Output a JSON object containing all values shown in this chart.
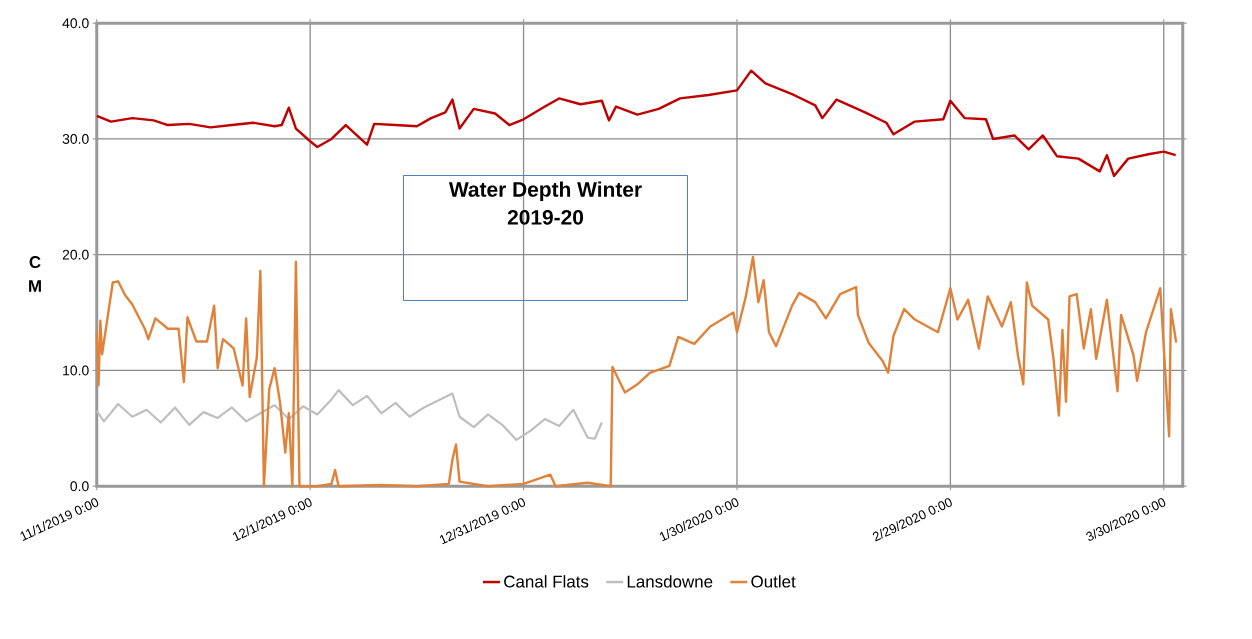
{
  "chart_data": {
    "type": "line",
    "title": "Water Depth Winter 2019-20",
    "ylabel": "C M",
    "xlim": [
      "2019-11-01T00:00",
      "2020-04-01T16:00"
    ],
    "xticks": [
      {
        "value": "2019-11-01T00:00",
        "label": "11/1/2019 0:00"
      },
      {
        "value": "2019-12-01T00:00",
        "label": "12/1/2019 0:00"
      },
      {
        "value": "2019-12-31T00:00",
        "label": "12/31/2019 0:00"
      },
      {
        "value": "2020-01-30T00:00",
        "label": "1/30/2020 0:00"
      },
      {
        "value": "2020-02-29T00:00",
        "label": "2/29/2020 0:00"
      },
      {
        "value": "2020-03-30T00:00",
        "label": "3/30/2020 0:00"
      }
    ],
    "ylim": [
      0,
      40
    ],
    "yticks": [
      {
        "value": 0,
        "label": "0.0"
      },
      {
        "value": 10,
        "label": "10.0"
      },
      {
        "value": 20,
        "label": "20.0"
      },
      {
        "value": 30,
        "label": "30.0"
      },
      {
        "value": 40,
        "label": "40.0"
      }
    ],
    "grid": true,
    "legend": "bottom",
    "series": [
      {
        "name": "Canal Flats",
        "color": "#c00000",
        "x": [
          "2019-11-01T00:00",
          "2019-11-03T00:00",
          "2019-11-06T00:00",
          "2019-11-09T00:00",
          "2019-11-11T00:00",
          "2019-11-14T00:00",
          "2019-11-17T00:00",
          "2019-11-20T00:00",
          "2019-11-23T00:00",
          "2019-11-26T00:00",
          "2019-11-27T00:00",
          "2019-11-28T00:00",
          "2019-11-29T00:00",
          "2019-12-01T00:00",
          "2019-12-02T00:00",
          "2019-12-04T00:00",
          "2019-12-06T00:00",
          "2019-12-09T00:00",
          "2019-12-10T00:00",
          "2019-12-13T00:00",
          "2019-12-16T00:00",
          "2019-12-18T00:00",
          "2019-12-20T00:00",
          "2019-12-21T00:00",
          "2019-12-22T00:00",
          "2019-12-24T00:00",
          "2019-12-27T00:00",
          "2019-12-29T00:00",
          "2019-12-31T00:00",
          "2020-01-03T00:00",
          "2020-01-05T00:00",
          "2020-01-08T00:00",
          "2020-01-11T00:00",
          "2020-01-12T00:00",
          "2020-01-13T00:00",
          "2020-01-16T00:00",
          "2020-01-19T00:00",
          "2020-01-22T00:00",
          "2020-01-26T00:00",
          "2020-01-30T00:00",
          "2020-02-01T00:00",
          "2020-02-03T00:00",
          "2020-02-07T00:00",
          "2020-02-10T00:00",
          "2020-02-11T00:00",
          "2020-02-13T00:00",
          "2020-02-17T00:00",
          "2020-02-20T00:00",
          "2020-02-21T00:00",
          "2020-02-24T00:00",
          "2020-02-28T00:00",
          "2020-02-29T00:00",
          "2020-03-02T00:00",
          "2020-03-05T00:00",
          "2020-03-06T00:00",
          "2020-03-09T00:00",
          "2020-03-11T00:00",
          "2020-03-13T00:00",
          "2020-03-15T00:00",
          "2020-03-18T00:00",
          "2020-03-21T00:00",
          "2020-03-22T00:00",
          "2020-03-23T00:00",
          "2020-03-25T00:00",
          "2020-03-28T00:00",
          "2020-03-30T00:00",
          "2020-03-31T16:00"
        ],
        "values": [
          32.0,
          31.5,
          31.8,
          31.6,
          31.2,
          31.3,
          31.0,
          31.2,
          31.4,
          31.1,
          31.2,
          32.7,
          30.9,
          29.8,
          29.3,
          30.0,
          31.2,
          29.5,
          31.3,
          31.2,
          31.1,
          31.8,
          32.3,
          33.4,
          30.9,
          32.6,
          32.2,
          31.2,
          31.7,
          32.8,
          33.5,
          33.0,
          33.3,
          31.6,
          32.8,
          32.1,
          32.6,
          33.5,
          33.8,
          34.2,
          35.9,
          34.8,
          33.8,
          32.9,
          31.8,
          33.4,
          32.3,
          31.4,
          30.4,
          31.5,
          31.7,
          33.3,
          31.8,
          31.7,
          30.0,
          30.3,
          29.1,
          30.3,
          28.5,
          28.3,
          27.2,
          28.6,
          26.8,
          28.3,
          28.7,
          28.9,
          28.6
        ]
      },
      {
        "name": "Lansdowne",
        "color": "#bfbfbf",
        "x": [
          "2019-11-01T00:00",
          "2019-11-02T00:00",
          "2019-11-04T00:00",
          "2019-11-06T00:00",
          "2019-11-08T00:00",
          "2019-11-10T00:00",
          "2019-11-12T00:00",
          "2019-11-14T00:00",
          "2019-11-16T00:00",
          "2019-11-18T00:00",
          "2019-11-20T00:00",
          "2019-11-22T00:00",
          "2019-11-24T00:00",
          "2019-11-26T00:00",
          "2019-11-28T00:00",
          "2019-11-30T00:00",
          "2019-12-02T00:00",
          "2019-12-04T00:00",
          "2019-12-05T00:00",
          "2019-12-07T00:00",
          "2019-12-09T00:00",
          "2019-12-11T00:00",
          "2019-12-13T00:00",
          "2019-12-15T00:00",
          "2019-12-17T00:00",
          "2019-12-19T00:00",
          "2019-12-21T00:00",
          "2019-12-22T00:00",
          "2019-12-24T00:00",
          "2019-12-26T00:00",
          "2019-12-28T00:00",
          "2019-12-30T00:00",
          "2020-01-01T00:00",
          "2020-01-03T00:00",
          "2020-01-05T00:00",
          "2020-01-07T00:00",
          "2020-01-09T00:00",
          "2020-01-10T00:00",
          "2020-01-11T00:00"
        ],
        "values": [
          6.5,
          5.6,
          7.1,
          6.0,
          6.6,
          5.5,
          6.8,
          5.3,
          6.4,
          5.9,
          6.8,
          5.6,
          6.3,
          7.0,
          5.8,
          6.9,
          6.2,
          7.5,
          8.3,
          7.0,
          7.8,
          6.3,
          7.2,
          6.0,
          6.8,
          7.4,
          8.0,
          6.0,
          5.1,
          6.2,
          5.3,
          4.0,
          4.8,
          5.8,
          5.2,
          6.6,
          4.2,
          4.1,
          5.5
        ]
      },
      {
        "name": "Outlet",
        "color": "#e0823a",
        "x": [
          "2019-11-01T00:00",
          "2019-11-01T06:00",
          "2019-11-01T12:00",
          "2019-11-01T18:00",
          "2019-11-03T06:00",
          "2019-11-04T00:00",
          "2019-11-05T00:00",
          "2019-11-06T00:00",
          "2019-11-07T18:00",
          "2019-11-08T06:00",
          "2019-11-09T06:00",
          "2019-11-11T00:00",
          "2019-11-12T12:00",
          "2019-11-13T06:00",
          "2019-11-13T18:00",
          "2019-11-15T00:00",
          "2019-11-16T12:00",
          "2019-11-17T12:00",
          "2019-11-18T00:00",
          "2019-11-18T18:00",
          "2019-11-20T06:00",
          "2019-11-21T12:00",
          "2019-11-22T00:00",
          "2019-11-22T12:00",
          "2019-11-23T12:00",
          "2019-11-24T00:00",
          "2019-11-24T12:00",
          "2019-11-25T06:00",
          "2019-11-26T00:00",
          "2019-11-26T18:00",
          "2019-11-27T12:00",
          "2019-11-28T00:00",
          "2019-11-28T12:00",
          "2019-11-29T00:00",
          "2019-11-29T12:00",
          "2019-12-02T00:00",
          "2019-12-04T00:00",
          "2019-12-04T12:00",
          "2019-12-05T00:00",
          "2019-12-11T00:00",
          "2019-12-16T00:00",
          "2019-12-20T12:00",
          "2019-12-21T00:00",
          "2019-12-21T12:00",
          "2019-12-22T00:00",
          "2019-12-26T00:00",
          "2019-12-31T00:00",
          "2020-01-03T18:00",
          "2020-01-04T12:00",
          "2020-01-09T00:00",
          "2020-01-12T06:00",
          "2020-01-12T12:00",
          "2020-01-14T06:00",
          "2020-01-16T00:00",
          "2020-01-17T18:00",
          "2020-01-20T12:00",
          "2020-01-21T18:00",
          "2020-01-24T00:00",
          "2020-01-26T06:00",
          "2020-01-29T12:00",
          "2020-01-30T00:00",
          "2020-01-31T06:00",
          "2020-02-01T06:00",
          "2020-02-02T00:00",
          "2020-02-02T18:00",
          "2020-02-03T12:00",
          "2020-02-04T12:00",
          "2020-02-06T18:00",
          "2020-02-07T18:00",
          "2020-02-10T00:00",
          "2020-02-11T12:00",
          "2020-02-13T12:00",
          "2020-02-15T18:00",
          "2020-02-16T00:00",
          "2020-02-17T12:00",
          "2020-02-19T12:00",
          "2020-02-20T06:00",
          "2020-02-21T00:00",
          "2020-02-22T12:00",
          "2020-02-24T00:00",
          "2020-02-27T06:00",
          "2020-02-29T00:00",
          "2020-03-01T00:00",
          "2020-03-02T12:00",
          "2020-03-04T00:00",
          "2020-03-05T06:00",
          "2020-03-07T06:00",
          "2020-03-08T12:00",
          "2020-03-09T12:00",
          "2020-03-10T06:00",
          "2020-03-10T18:00",
          "2020-03-11T12:00",
          "2020-03-13T18:00",
          "2020-03-14T12:00",
          "2020-03-15T06:00",
          "2020-03-15T18:00",
          "2020-03-16T06:00",
          "2020-03-16T18:00",
          "2020-03-17T18:00",
          "2020-03-18T18:00",
          "2020-03-19T18:00",
          "2020-03-20T12:00",
          "2020-03-22T00:00",
          "2020-03-23T12:00",
          "2020-03-24T00:00",
          "2020-03-25T18:00",
          "2020-03-26T06:00",
          "2020-03-27T12:00",
          "2020-03-29T12:00",
          "2020-03-30T18:00",
          "2020-03-31T00:00",
          "2020-03-31T18:00"
        ],
        "values": [
          13.3,
          8.7,
          14.3,
          11.4,
          17.6,
          17.7,
          16.5,
          15.7,
          13.6,
          12.7,
          14.5,
          13.6,
          13.6,
          9.0,
          14.6,
          12.5,
          12.5,
          15.6,
          10.2,
          12.7,
          11.9,
          8.7,
          14.5,
          7.7,
          11.1,
          18.6,
          0.0,
          8.4,
          10.2,
          7.3,
          2.9,
          6.3,
          0.0,
          19.4,
          0.0,
          0.0,
          0.2,
          1.4,
          0.0,
          0.1,
          0.0,
          0.2,
          2.3,
          3.6,
          0.4,
          0.0,
          0.2,
          1.0,
          0.0,
          0.3,
          0.0,
          10.3,
          8.1,
          8.8,
          9.8,
          10.4,
          12.9,
          12.3,
          13.8,
          15.0,
          13.3,
          16.4,
          19.8,
          15.9,
          17.8,
          13.3,
          12.1,
          15.6,
          16.7,
          15.9,
          14.5,
          16.6,
          17.2,
          14.8,
          12.4,
          10.8,
          9.8,
          13.0,
          15.3,
          14.4,
          13.3,
          17.1,
          14.4,
          16.1,
          11.9,
          16.4,
          13.8,
          15.9,
          11.3,
          8.8,
          17.6,
          15.6,
          14.4,
          11.0,
          6.1,
          13.5,
          7.3,
          16.4,
          16.6,
          11.9,
          15.3,
          11.0,
          16.1,
          8.2,
          14.8,
          11.3,
          9.1,
          13.3,
          17.1,
          4.3,
          15.3,
          12.4
        ]
      }
    ]
  }
}
